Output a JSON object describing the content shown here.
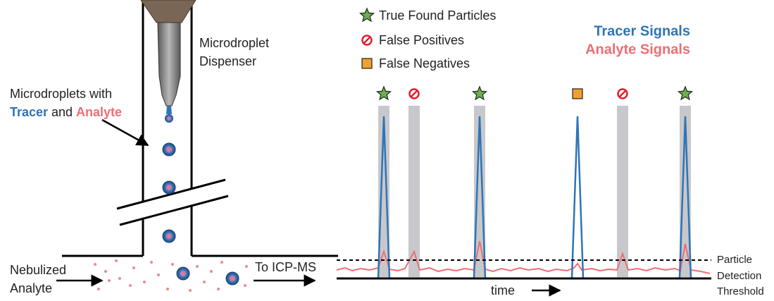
{
  "dispenser_label": [
    "Microdroplet",
    "Dispenser"
  ],
  "droplet_label": {
    "line1": "Microdroplets with",
    "tracer": "Tracer",
    "and": "and",
    "analyte": "Analyte"
  },
  "inlet_label": [
    "Nebulized",
    "Analyte"
  ],
  "outlet_label": "To ICP-MS",
  "legend": {
    "true_found": "True Found Particles",
    "false_positives": "False Positives",
    "false_negatives": "False Negatives"
  },
  "signals": {
    "tracer": "Tracer Signals",
    "analyte": "Analyte Signals"
  },
  "x_axis_label": "time",
  "threshold_label": [
    "Particle",
    "Detection",
    "Threshold"
  ]
}
